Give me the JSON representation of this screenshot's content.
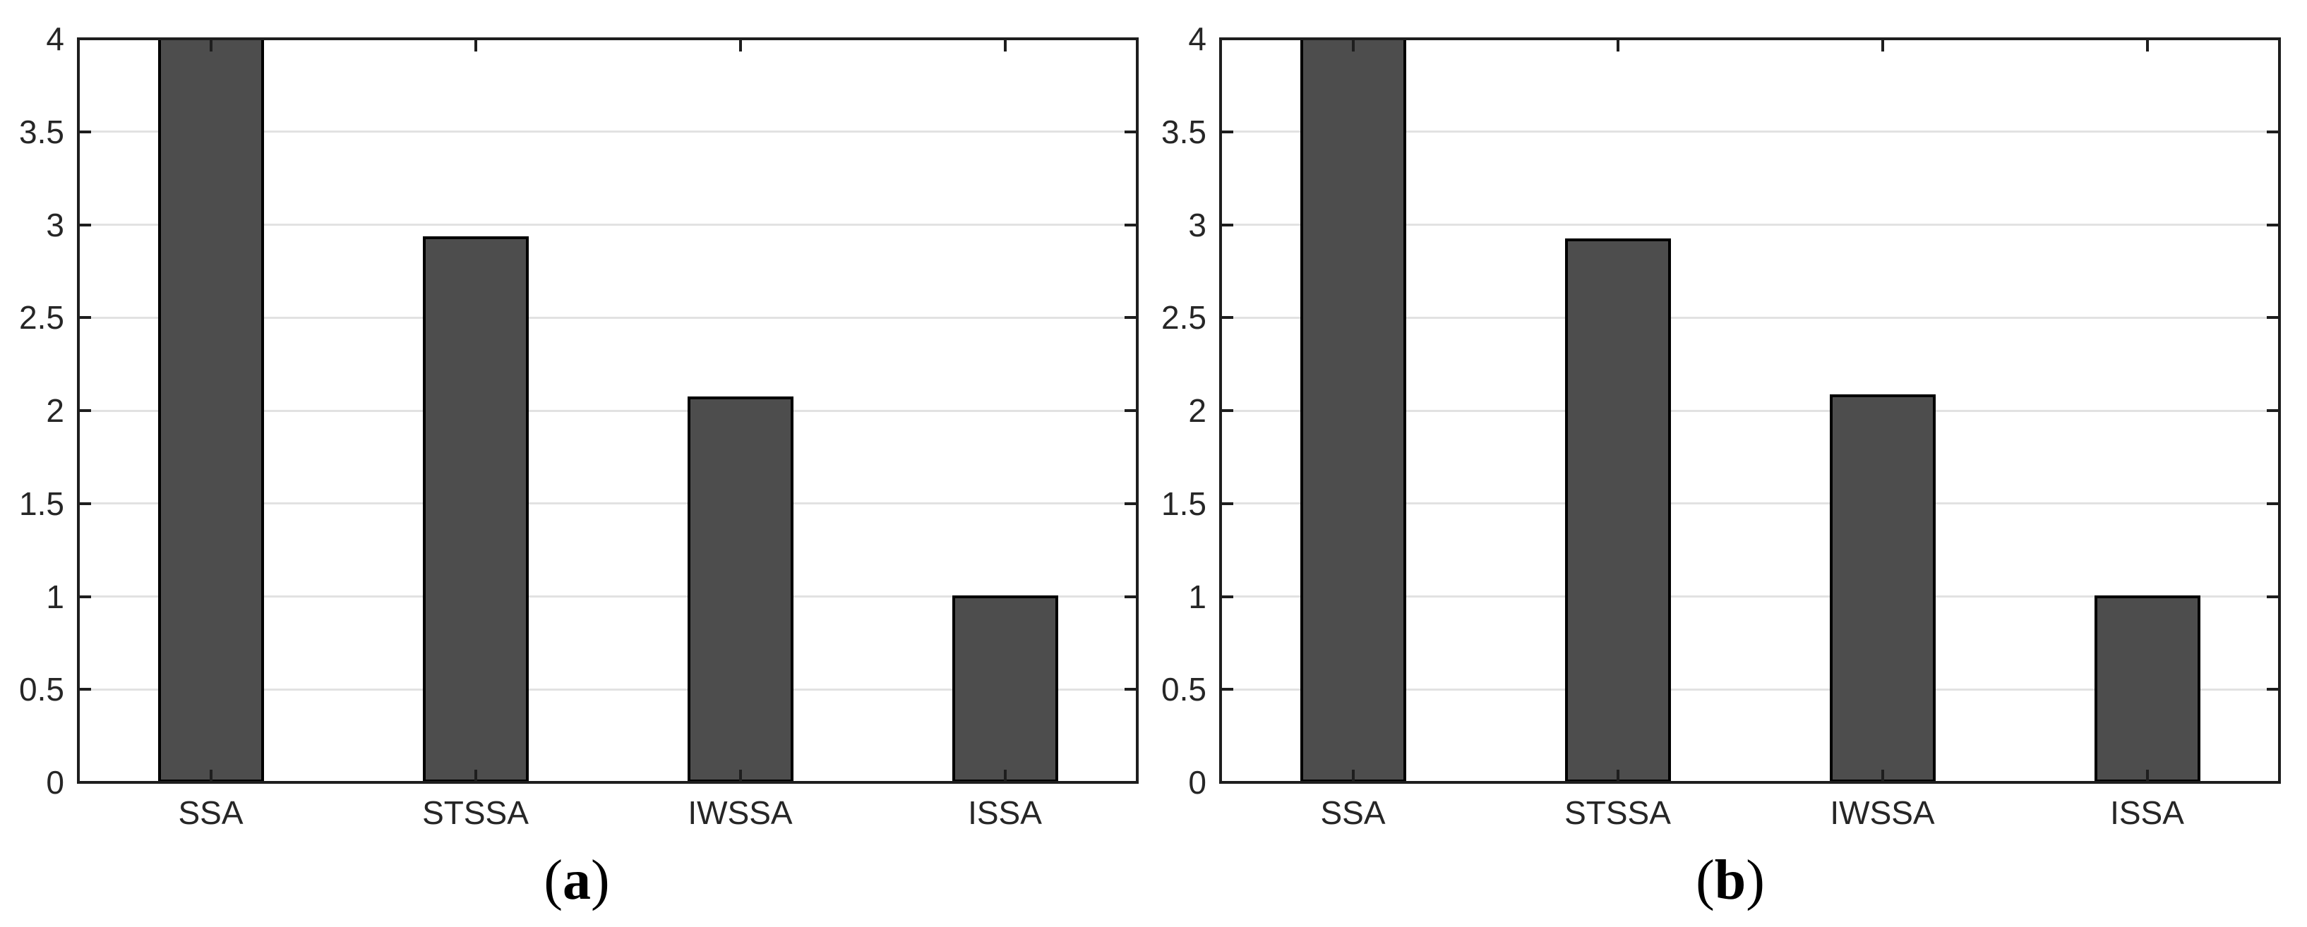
{
  "figure": {
    "background": "#ffffff",
    "description": "Two-panel bar chart comparing average ranks of four algorithms"
  },
  "chart_data": [
    {
      "type": "bar",
      "panel": "a",
      "title": "",
      "xlabel": "",
      "ylabel": "",
      "categories": [
        "SSA",
        "STSSA",
        "IWSSA",
        "ISSA"
      ],
      "values": [
        4.0,
        2.93,
        2.07,
        1.0
      ],
      "ylim": [
        0,
        4
      ],
      "ytick_step": 0.5,
      "ytick_labels": [
        "0",
        "0.5",
        "1",
        "1.5",
        "2",
        "2.5",
        "3",
        "3.5",
        "4"
      ],
      "grid": "horizontal",
      "legend": "none",
      "caption": {
        "open": "(",
        "letter": "a",
        "close": ")"
      },
      "colors": {
        "bar_fill": "#4d4d4d",
        "bar_edge": "#000000",
        "grid_color": "#e2e2e2",
        "axis_color": "#1e1e1e",
        "text_color": "#262626"
      }
    },
    {
      "type": "bar",
      "panel": "b",
      "title": "",
      "xlabel": "",
      "ylabel": "",
      "categories": [
        "SSA",
        "STSSA",
        "IWSSA",
        "ISSA"
      ],
      "values": [
        4.0,
        2.92,
        2.08,
        1.0
      ],
      "ylim": [
        0,
        4
      ],
      "ytick_step": 0.5,
      "ytick_labels": [
        "0",
        "0.5",
        "1",
        "1.5",
        "2",
        "2.5",
        "3",
        "3.5",
        "4"
      ],
      "grid": "horizontal",
      "legend": "none",
      "caption": {
        "open": "(",
        "letter": "b",
        "close": ")"
      },
      "colors": {
        "bar_fill": "#4d4d4d",
        "bar_edge": "#000000",
        "grid_color": "#e2e2e2",
        "axis_color": "#1e1e1e",
        "text_color": "#262626"
      }
    }
  ]
}
